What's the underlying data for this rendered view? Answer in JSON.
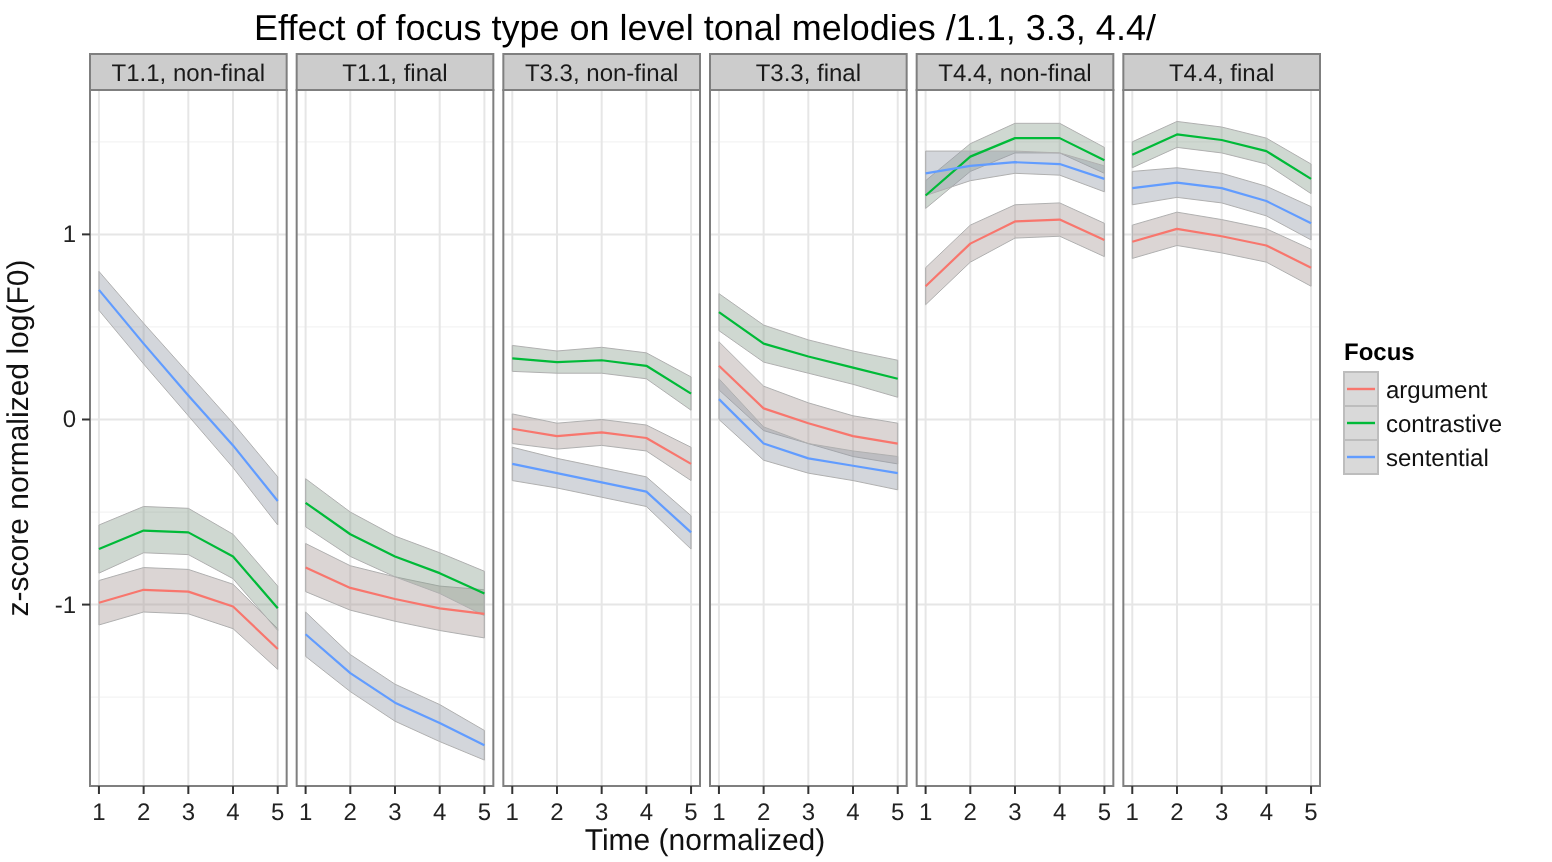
{
  "chart_data": [
    {
      "type": "line",
      "title": "T1.1, non-final",
      "annotations": [
        "Effect of focus type on level tonal melodies /1.1, 3.3, 4.4/"
      ],
      "ylabel": "z-score normalized log(F0)",
      "x": [
        1,
        2,
        3,
        4,
        5
      ],
      "xlim": [
        0.8,
        5.2
      ],
      "xticks": [
        1,
        2,
        3,
        4,
        5
      ],
      "ylim": [
        -1.98,
        1.78
      ],
      "yticks": [
        {
          "value": -1.5,
          "label": null
        },
        -1,
        {
          "value": -0.5,
          "label": null
        },
        0,
        {
          "value": 0.5,
          "label": null
        },
        1,
        {
          "value": 1.5,
          "label": null
        }
      ],
      "grid": true,
      "line_style": "solid",
      "series": [
        {
          "color": "#f8766d",
          "values": [
            -0.99,
            -0.92,
            -0.93,
            -1.01,
            -1.24
          ],
          "lower": [
            -1.11,
            -1.04,
            -1.05,
            -1.13,
            -1.35
          ],
          "upper": [
            -0.87,
            -0.8,
            -0.81,
            -0.89,
            -1.13
          ]
        },
        {
          "color": "#00ba38",
          "values": [
            -0.7,
            -0.6,
            -0.61,
            -0.74,
            -1.02
          ],
          "lower": [
            -0.83,
            -0.72,
            -0.73,
            -0.86,
            -1.14
          ],
          "upper": [
            -0.57,
            -0.47,
            -0.48,
            -0.62,
            -0.9
          ]
        },
        {
          "color": "#619cff",
          "values": [
            0.7,
            0.41,
            0.13,
            -0.14,
            -0.44
          ],
          "lower": [
            0.59,
            0.3,
            0.02,
            -0.26,
            -0.57
          ],
          "upper": [
            0.8,
            0.52,
            0.25,
            -0.02,
            -0.31
          ]
        }
      ]
    },
    {
      "type": "line",
      "title": "T1.1, final",
      "x": [
        1,
        2,
        3,
        4,
        5
      ],
      "xlim": [
        0.8,
        5.2
      ],
      "xticks": [
        1,
        2,
        3,
        4,
        5
      ],
      "ylim": [
        -1.98,
        1.78
      ],
      "yticks": [
        {
          "value": -1.5,
          "label": null
        },
        -1,
        {
          "value": -0.5,
          "label": null
        },
        0,
        {
          "value": 0.5,
          "label": null
        },
        1,
        {
          "value": 1.5,
          "label": null
        }
      ],
      "tick_labels": "x",
      "grid": true,
      "line_style": "solid",
      "series": [
        {
          "color": "#f8766d",
          "values": [
            -0.8,
            -0.91,
            -0.97,
            -1.02,
            -1.05
          ],
          "lower": [
            -0.93,
            -1.03,
            -1.09,
            -1.14,
            -1.18
          ],
          "upper": [
            -0.67,
            -0.79,
            -0.85,
            -0.9,
            -0.92
          ]
        },
        {
          "color": "#00ba38",
          "values": [
            -0.45,
            -0.62,
            -0.74,
            -0.83,
            -0.94
          ],
          "lower": [
            -0.58,
            -0.74,
            -0.85,
            -0.94,
            -1.06
          ],
          "upper": [
            -0.32,
            -0.5,
            -0.63,
            -0.72,
            -0.82
          ]
        },
        {
          "color": "#619cff",
          "values": [
            -1.16,
            -1.37,
            -1.53,
            -1.64,
            -1.76
          ],
          "lower": [
            -1.28,
            -1.47,
            -1.63,
            -1.74,
            -1.84
          ],
          "upper": [
            -1.04,
            -1.27,
            -1.43,
            -1.54,
            -1.68
          ]
        }
      ]
    },
    {
      "type": "line",
      "title": "T3.3, non-final",
      "x": [
        1,
        2,
        3,
        4,
        5
      ],
      "xlim": [
        0.8,
        5.2
      ],
      "xticks": [
        1,
        2,
        3,
        4,
        5
      ],
      "ylim": [
        -1.98,
        1.78
      ],
      "yticks": [
        {
          "value": -1.5,
          "label": null
        },
        -1,
        {
          "value": -0.5,
          "label": null
        },
        0,
        {
          "value": 0.5,
          "label": null
        },
        1,
        {
          "value": 1.5,
          "label": null
        }
      ],
      "tick_labels": "x",
      "grid": true,
      "line_style": "solid",
      "series": [
        {
          "color": "#f8766d",
          "values": [
            -0.05,
            -0.09,
            -0.07,
            -0.1,
            -0.24
          ],
          "lower": [
            -0.13,
            -0.16,
            -0.14,
            -0.17,
            -0.33
          ],
          "upper": [
            0.03,
            -0.02,
            0.0,
            -0.03,
            -0.15
          ]
        },
        {
          "color": "#00ba38",
          "values": [
            0.33,
            0.31,
            0.32,
            0.29,
            0.14
          ],
          "lower": [
            0.26,
            0.25,
            0.25,
            0.22,
            0.05
          ],
          "upper": [
            0.4,
            0.37,
            0.39,
            0.36,
            0.23
          ]
        },
        {
          "color": "#619cff",
          "values": [
            -0.24,
            -0.29,
            -0.34,
            -0.39,
            -0.61
          ],
          "lower": [
            -0.33,
            -0.37,
            -0.42,
            -0.47,
            -0.7
          ],
          "upper": [
            -0.15,
            -0.21,
            -0.26,
            -0.31,
            -0.52
          ]
        }
      ]
    },
    {
      "type": "line",
      "title": "T3.3, final",
      "xlabel": "Time (normalized)",
      "x": [
        1,
        2,
        3,
        4,
        5
      ],
      "xlim": [
        0.8,
        5.2
      ],
      "xticks": [
        1,
        2,
        3,
        4,
        5
      ],
      "ylim": [
        -1.98,
        1.78
      ],
      "yticks": [
        {
          "value": -1.5,
          "label": null
        },
        -1,
        {
          "value": -0.5,
          "label": null
        },
        0,
        {
          "value": 0.5,
          "label": null
        },
        1,
        {
          "value": 1.5,
          "label": null
        }
      ],
      "tick_labels": "x",
      "grid": true,
      "line_style": "solid",
      "series": [
        {
          "color": "#f8766d",
          "values": [
            0.29,
            0.06,
            -0.02,
            -0.09,
            -0.13
          ],
          "lower": [
            0.16,
            -0.06,
            -0.13,
            -0.2,
            -0.24
          ],
          "upper": [
            0.42,
            0.18,
            0.09,
            0.02,
            -0.02
          ]
        },
        {
          "color": "#00ba38",
          "values": [
            0.58,
            0.41,
            0.34,
            0.28,
            0.22
          ],
          "lower": [
            0.48,
            0.31,
            0.25,
            0.19,
            0.12
          ],
          "upper": [
            0.68,
            0.51,
            0.43,
            0.37,
            0.32
          ]
        },
        {
          "color": "#619cff",
          "values": [
            0.11,
            -0.13,
            -0.21,
            -0.25,
            -0.29
          ],
          "lower": [
            0.0,
            -0.22,
            -0.29,
            -0.33,
            -0.38
          ],
          "upper": [
            0.22,
            -0.04,
            -0.13,
            -0.17,
            -0.2
          ]
        }
      ]
    },
    {
      "type": "line",
      "title": "T4.4, non-final",
      "x": [
        1,
        2,
        3,
        4,
        5
      ],
      "xlim": [
        0.8,
        5.2
      ],
      "xticks": [
        1,
        2,
        3,
        4,
        5
      ],
      "ylim": [
        -1.98,
        1.78
      ],
      "yticks": [
        {
          "value": -1.5,
          "label": null
        },
        -1,
        {
          "value": -0.5,
          "label": null
        },
        0,
        {
          "value": 0.5,
          "label": null
        },
        1,
        {
          "value": 1.5,
          "label": null
        }
      ],
      "tick_labels": "x",
      "grid": true,
      "line_style": "solid",
      "series": [
        {
          "color": "#f8766d",
          "values": [
            0.72,
            0.95,
            1.07,
            1.08,
            0.97
          ],
          "lower": [
            0.62,
            0.85,
            0.98,
            0.99,
            0.88
          ],
          "upper": [
            0.82,
            1.05,
            1.16,
            1.17,
            1.06
          ]
        },
        {
          "color": "#00ba38",
          "values": [
            1.21,
            1.42,
            1.52,
            1.52,
            1.4
          ],
          "lower": [
            1.14,
            1.34,
            1.44,
            1.44,
            1.33
          ],
          "upper": [
            1.29,
            1.49,
            1.6,
            1.6,
            1.47
          ]
        },
        {
          "color": "#619cff",
          "values": [
            1.33,
            1.37,
            1.39,
            1.38,
            1.3
          ],
          "lower": [
            1.21,
            1.29,
            1.33,
            1.32,
            1.23
          ],
          "upper": [
            1.45,
            1.45,
            1.45,
            1.44,
            1.37
          ]
        }
      ]
    },
    {
      "type": "line",
      "title": "T4.4, final",
      "legend": "right",
      "legend_title": "Focus",
      "x": [
        1,
        2,
        3,
        4,
        5
      ],
      "xlim": [
        0.8,
        5.2
      ],
      "xticks": [
        1,
        2,
        3,
        4,
        5
      ],
      "ylim": [
        -1.98,
        1.78
      ],
      "yticks": [
        {
          "value": -1.5,
          "label": null
        },
        -1,
        {
          "value": -0.5,
          "label": null
        },
        0,
        {
          "value": 0.5,
          "label": null
        },
        1,
        {
          "value": 1.5,
          "label": null
        }
      ],
      "tick_labels": "x",
      "grid": true,
      "line_style": "solid",
      "series": [
        {
          "name": "argument",
          "color": "#f8766d",
          "values": [
            0.96,
            1.03,
            0.99,
            0.94,
            0.82
          ],
          "lower": [
            0.87,
            0.94,
            0.9,
            0.85,
            0.72
          ],
          "upper": [
            1.05,
            1.12,
            1.08,
            1.03,
            0.92
          ]
        },
        {
          "name": "contrastive",
          "color": "#00ba38",
          "values": [
            1.43,
            1.54,
            1.51,
            1.45,
            1.3
          ],
          "lower": [
            1.36,
            1.47,
            1.44,
            1.38,
            1.22
          ],
          "upper": [
            1.5,
            1.61,
            1.58,
            1.52,
            1.38
          ]
        },
        {
          "name": "sentential",
          "color": "#619cff",
          "values": [
            1.25,
            1.28,
            1.25,
            1.18,
            1.06
          ],
          "lower": [
            1.16,
            1.2,
            1.17,
            1.1,
            0.97
          ],
          "upper": [
            1.34,
            1.36,
            1.33,
            1.26,
            1.15
          ]
        }
      ]
    }
  ]
}
